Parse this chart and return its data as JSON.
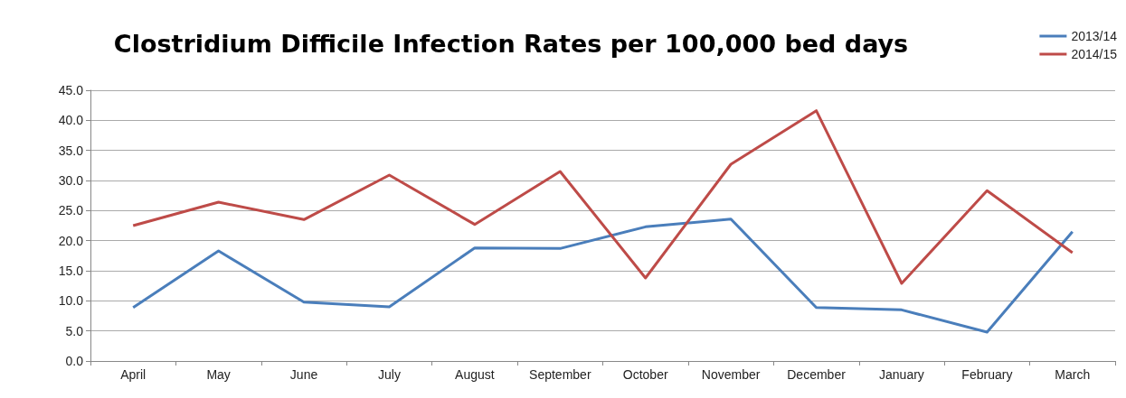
{
  "chart_data": {
    "type": "line",
    "title": "Clostridium Difficile Infection Rates per 100,000 bed days",
    "categories": [
      "April",
      "May",
      "June",
      "July",
      "August",
      "September",
      "October",
      "November",
      "December",
      "January",
      "February",
      "March"
    ],
    "series": [
      {
        "name": "2013/14",
        "color": "#4a7ebb",
        "values": [
          8.9,
          18.3,
          9.8,
          9.0,
          18.8,
          18.7,
          22.3,
          23.6,
          8.9,
          8.5,
          4.8,
          21.5
        ]
      },
      {
        "name": "2014/15",
        "color": "#be4b48",
        "values": [
          22.5,
          26.4,
          23.5,
          30.9,
          22.7,
          31.5,
          13.8,
          32.7,
          41.6,
          12.9,
          28.3,
          18.0
        ]
      }
    ],
    "ylim": [
      0,
      45
    ],
    "yticks": [
      {
        "value": 0,
        "label": "0.0"
      },
      {
        "value": 5,
        "label": "5.0"
      },
      {
        "value": 10,
        "label": "10.0"
      },
      {
        "value": 15,
        "label": "15.0"
      },
      {
        "value": 20,
        "label": "20.0"
      },
      {
        "value": 25,
        "label": "25.0"
      },
      {
        "value": 30,
        "label": "30.0"
      },
      {
        "value": 35,
        "label": "35.0"
      },
      {
        "value": 40,
        "label": "40.0"
      },
      {
        "value": 45,
        "label": "45.0"
      }
    ],
    "grid": "y",
    "legend": "top right",
    "marker": "none",
    "line_style": "solid"
  }
}
